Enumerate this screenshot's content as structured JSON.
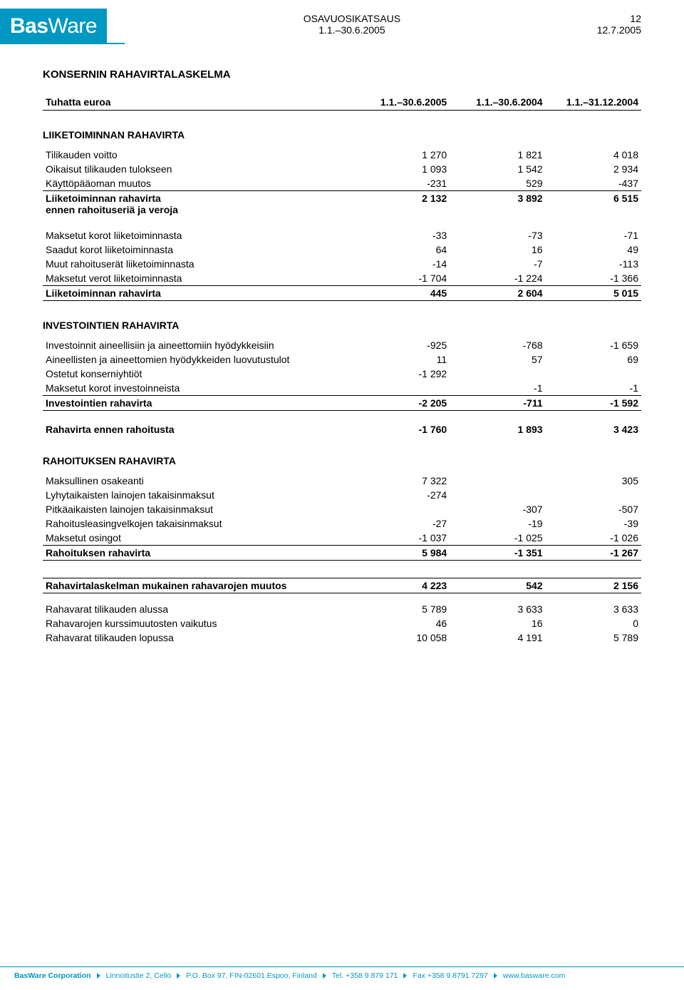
{
  "header": {
    "brand_bold": "Bas",
    "brand_rest": "Ware",
    "center_line1": "OSAVUOSIKATSAUS",
    "center_line2": "1.1.–30.6.2005",
    "right_line1": "12",
    "right_line2": "12.7.2005"
  },
  "title": "KONSERNIN RAHAVIRTALASKELMA",
  "col_headers": {
    "label": "Tuhatta euroa",
    "c1": "1.1.–30.6.2005",
    "c2": "1.1.–30.6.2004",
    "c3": "1.1.–31.12.2004"
  },
  "sections": {
    "op_title": "LIIKETOIMINNAN RAHAVIRTA",
    "op_rows1": [
      {
        "label": "Tilikauden voitto",
        "c1": "1 270",
        "c2": "1 821",
        "c3": "4 018"
      },
      {
        "label": "Oikaisut tilikauden tulokseen",
        "c1": "1 093",
        "c2": "1 542",
        "c3": "2 934"
      },
      {
        "label": "Käyttöpääoman muutos",
        "c1": "-231",
        "c2": "529",
        "c3": "-437"
      }
    ],
    "op_sub1": {
      "label1": "Liiketoiminnan rahavirta",
      "label2": "ennen rahoituseriä ja veroja",
      "c1": "2 132",
      "c2": "3 892",
      "c3": "6 515"
    },
    "op_rows2": [
      {
        "label": "Maksetut korot liiketoiminnasta",
        "c1": "-33",
        "c2": "-73",
        "c3": "-71"
      },
      {
        "label": "Saadut korot liiketoiminnasta",
        "c1": "64",
        "c2": "16",
        "c3": "49"
      },
      {
        "label": "Muut rahoituserät liiketoiminnasta",
        "c1": "-14",
        "c2": "-7",
        "c3": "-113"
      },
      {
        "label": "Maksetut verot liiketoiminnasta",
        "c1": "-1 704",
        "c2": "-1 224",
        "c3": "-1 366"
      }
    ],
    "op_total": {
      "label": "Liiketoiminnan rahavirta",
      "c1": "445",
      "c2": "2 604",
      "c3": "5 015"
    },
    "inv_title": "INVESTOINTIEN RAHAVIRTA",
    "inv_rows": [
      {
        "label": "Investoinnit aineellisiin ja aineettomiin hyödykkeisiin",
        "c1": "-925",
        "c2": "-768",
        "c3": "-1 659"
      },
      {
        "label": "Aineellisten ja aineettomien hyödykkeiden luovutustulot",
        "c1": "11",
        "c2": "57",
        "c3": "69"
      },
      {
        "label": "Ostetut konserniyhtiöt",
        "c1": "-1 292",
        "c2": "",
        "c3": ""
      },
      {
        "label": "Maksetut korot investoinneista",
        "c1": "",
        "c2": "-1",
        "c3": "-1"
      }
    ],
    "inv_total": {
      "label": "Investointien rahavirta",
      "c1": "-2 205",
      "c2": "-711",
      "c3": "-1 592"
    },
    "pre_fin": {
      "label": "Rahavirta ennen rahoitusta",
      "c1": "-1 760",
      "c2": "1 893",
      "c3": "3 423"
    },
    "fin_title": "RAHOITUKSEN RAHAVIRTA",
    "fin_rows": [
      {
        "label": "Maksullinen osakeanti",
        "c1": "7 322",
        "c2": "",
        "c3": "305"
      },
      {
        "label": "Lyhytaikaisten lainojen takaisinmaksut",
        "c1": "-274",
        "c2": "",
        "c3": ""
      },
      {
        "label": "Pitkäaikaisten lainojen takaisinmaksut",
        "c1": "",
        "c2": "-307",
        "c3": "-507"
      },
      {
        "label": "Rahoitusleasingvelkojen takaisinmaksut",
        "c1": "-27",
        "c2": "-19",
        "c3": "-39"
      },
      {
        "label": "Maksetut osingot",
        "c1": "-1 037",
        "c2": "-1 025",
        "c3": "-1 026"
      }
    ],
    "fin_total": {
      "label": "Rahoituksen rahavirta",
      "c1": "5 984",
      "c2": "-1 351",
      "c3": "-1 267"
    },
    "change": {
      "label": "Rahavirtalaskelman mukainen rahavarojen muutos",
      "c1": "4 223",
      "c2": "542",
      "c3": "2 156"
    },
    "closing_rows": [
      {
        "label": "Rahavarat tilikauden alussa",
        "c1": "5 789",
        "c2": "3 633",
        "c3": "3 633"
      },
      {
        "label": "Rahavarojen kurssimuutosten vaikutus",
        "c1": "46",
        "c2": "16",
        "c3": "0"
      },
      {
        "label": "Rahavarat tilikauden lopussa",
        "c1": "10 058",
        "c2": "4 191",
        "c3": "5 789"
      }
    ]
  },
  "footer": {
    "company": "BasWare Corporation",
    "addr": "Linnoitustie 2, Cello",
    "pobox": "P.O. Box 97, FIN-02601 Espoo, Finland",
    "tel": "Tel. +358 9 879 171",
    "fax": "Fax +358 9 8791 7297",
    "web": "www.basware.com"
  },
  "colors": {
    "brand": "#0098c3",
    "text": "#000000",
    "bg": "#ffffff"
  }
}
